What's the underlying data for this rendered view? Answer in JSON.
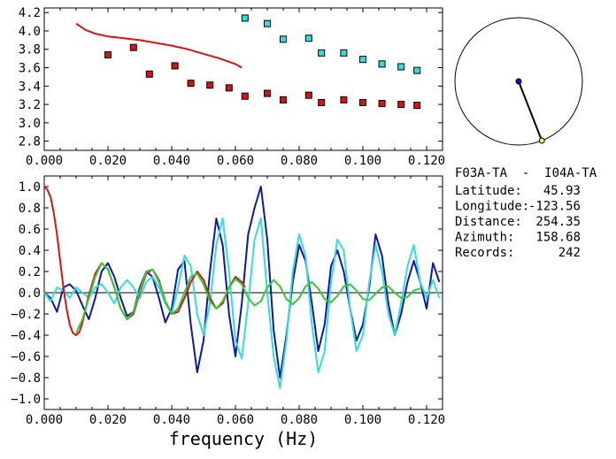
{
  "info": {
    "station_pair": "F03A-TA  -  I04A-TA",
    "rows": [
      {
        "label": "Latitude:",
        "value": "45.93"
      },
      {
        "label": "Longitude:",
        "value": "-123.56"
      },
      {
        "label": "Distance:",
        "value": "254.35"
      },
      {
        "label": "Azimuth:",
        "value": "158.68"
      },
      {
        "label": "Records:",
        "value": "242"
      }
    ]
  },
  "colors": {
    "red": "#dd1111",
    "cyan": "#33dddd",
    "blue": "#0a1aa8",
    "green": "#33cc33",
    "marker_yellow": "#eeee44",
    "axis": "#000000"
  },
  "chart_data": [
    {
      "type": "scatter",
      "title": "",
      "xlabel": "",
      "ylabel": "",
      "xlim": [
        0.0,
        0.125
      ],
      "ylim": [
        2.7,
        4.25
      ],
      "xticks": [
        "0.000",
        "0.020",
        "0.040",
        "0.060",
        "0.080",
        "0.100",
        "0.120"
      ],
      "yticks": [
        "2.8",
        "3.0",
        "3.2",
        "3.4",
        "3.6",
        "3.8",
        "4.0",
        "4.2"
      ],
      "series": [
        {
          "kind": "points",
          "color": "red",
          "x": [
            0.02,
            0.028,
            0.033,
            0.041,
            0.046,
            0.052,
            0.058,
            0.063,
            0.07,
            0.075,
            0.083,
            0.087,
            0.094,
            0.1,
            0.106,
            0.112,
            0.117
          ],
          "y": [
            3.74,
            3.82,
            3.53,
            3.62,
            3.43,
            3.41,
            3.38,
            3.29,
            3.32,
            3.25,
            3.3,
            3.22,
            3.25,
            3.22,
            3.21,
            3.2,
            3.19
          ]
        },
        {
          "kind": "points",
          "color": "cyan",
          "x": [
            0.063,
            0.07,
            0.075,
            0.083,
            0.087,
            0.094,
            0.1,
            0.106,
            0.112,
            0.117
          ],
          "y": [
            4.14,
            4.08,
            3.91,
            3.92,
            3.76,
            3.76,
            3.69,
            3.64,
            3.61,
            3.57
          ]
        },
        {
          "kind": "line",
          "color": "red",
          "x": [
            0.01,
            0.013,
            0.016,
            0.02,
            0.025,
            0.03,
            0.035,
            0.04,
            0.045,
            0.05,
            0.055,
            0.06,
            0.062
          ],
          "y": [
            4.08,
            4.01,
            3.97,
            3.94,
            3.92,
            3.9,
            3.87,
            3.84,
            3.8,
            3.75,
            3.7,
            3.64,
            3.6
          ]
        }
      ]
    },
    {
      "type": "line",
      "title": "",
      "xlabel": "frequency (Hz)",
      "ylabel": "",
      "xlim": [
        0.0,
        0.125
      ],
      "ylim": [
        -1.1,
        1.1
      ],
      "xticks": [
        "0.000",
        "0.020",
        "0.040",
        "0.060",
        "0.080",
        "0.100",
        "0.120"
      ],
      "yticks": [
        "1.0",
        "0.8",
        "0.6",
        "0.4",
        "0.2",
        "0.0",
        "-0.2",
        "-0.4",
        "-0.6",
        "-0.8",
        "-1.0"
      ],
      "series": [
        {
          "color": "blue",
          "x": [
            0.0,
            0.002,
            0.004,
            0.006,
            0.008,
            0.01,
            0.012,
            0.014,
            0.016,
            0.018,
            0.02,
            0.022,
            0.024,
            0.026,
            0.028,
            0.03,
            0.032,
            0.034,
            0.036,
            0.038,
            0.04,
            0.042,
            0.044,
            0.046,
            0.048,
            0.05,
            0.052,
            0.054,
            0.056,
            0.058,
            0.06,
            0.062,
            0.064,
            0.066,
            0.068,
            0.07,
            0.072,
            0.074,
            0.076,
            0.078,
            0.08,
            0.082,
            0.084,
            0.086,
            0.088,
            0.09,
            0.092,
            0.094,
            0.096,
            0.098,
            0.1,
            0.102,
            0.104,
            0.106,
            0.108,
            0.11,
            0.112,
            0.114,
            0.116,
            0.118,
            0.12,
            0.122,
            0.124
          ],
          "y": [
            0.0,
            -0.05,
            -0.18,
            0.05,
            0.08,
            0.02,
            -0.12,
            -0.25,
            -0.05,
            0.2,
            0.28,
            0.15,
            -0.05,
            -0.22,
            -0.18,
            0.05,
            0.2,
            0.15,
            -0.05,
            -0.28,
            -0.15,
            0.22,
            0.3,
            -0.3,
            -0.75,
            -0.45,
            0.2,
            0.7,
            0.45,
            -0.2,
            -0.6,
            -0.1,
            0.55,
            0.8,
            1.0,
            0.5,
            -0.35,
            -0.8,
            -0.4,
            0.1,
            0.45,
            0.3,
            -0.1,
            -0.55,
            -0.3,
            0.25,
            0.4,
            0.2,
            -0.15,
            -0.45,
            -0.3,
            0.05,
            0.55,
            0.35,
            -0.1,
            -0.4,
            -0.2,
            0.1,
            0.3,
            0.1,
            -0.15,
            0.28,
            0.1
          ]
        },
        {
          "color": "cyan",
          "x": [
            0.0,
            0.002,
            0.004,
            0.006,
            0.008,
            0.01,
            0.012,
            0.014,
            0.016,
            0.018,
            0.02,
            0.022,
            0.024,
            0.026,
            0.028,
            0.03,
            0.032,
            0.034,
            0.036,
            0.038,
            0.04,
            0.042,
            0.044,
            0.046,
            0.048,
            0.05,
            0.052,
            0.054,
            0.056,
            0.058,
            0.06,
            0.062,
            0.064,
            0.066,
            0.068,
            0.07,
            0.072,
            0.074,
            0.076,
            0.078,
            0.08,
            0.082,
            0.084,
            0.086,
            0.088,
            0.09,
            0.092,
            0.094,
            0.096,
            0.098,
            0.1,
            0.102,
            0.104,
            0.106,
            0.108,
            0.11,
            0.112,
            0.114,
            0.116,
            0.118,
            0.12,
            0.122,
            0.124
          ],
          "y": [
            0.0,
            -0.08,
            0.05,
            0.02,
            -0.05,
            0.05,
            0.0,
            -0.05,
            0.05,
            0.08,
            0.0,
            -0.1,
            0.05,
            0.12,
            0.05,
            -0.05,
            0.1,
            0.15,
            0.05,
            -0.1,
            -0.2,
            0.05,
            0.35,
            0.25,
            -0.2,
            -0.4,
            -0.1,
            0.45,
            0.7,
            0.2,
            -0.45,
            -0.62,
            -0.1,
            0.5,
            0.7,
            0.0,
            -0.6,
            -0.9,
            -0.45,
            0.2,
            0.55,
            0.35,
            -0.3,
            -0.75,
            -0.55,
            0.1,
            0.5,
            0.4,
            -0.15,
            -0.55,
            -0.4,
            0.1,
            0.45,
            0.2,
            -0.2,
            -0.4,
            -0.1,
            0.25,
            0.45,
            0.1,
            -0.05,
            0.12,
            -0.05
          ]
        },
        {
          "color": "red",
          "x": [
            0.0,
            0.001,
            0.002,
            0.003,
            0.004,
            0.005,
            0.006,
            0.007,
            0.008,
            0.009,
            0.01,
            0.011,
            0.012,
            0.013,
            0.014,
            0.016,
            0.018,
            0.02,
            0.022,
            0.024,
            0.026,
            0.028,
            0.03,
            0.032,
            0.034,
            0.036,
            0.038,
            0.04,
            0.042,
            0.044,
            0.046,
            0.048,
            0.05,
            0.052,
            0.054,
            0.056,
            0.058,
            0.06,
            0.062,
            0.063
          ],
          "y": [
            1.0,
            0.97,
            0.9,
            0.75,
            0.55,
            0.3,
            0.05,
            -0.15,
            -0.3,
            -0.38,
            -0.4,
            -0.37,
            -0.28,
            -0.15,
            -0.02,
            0.18,
            0.28,
            0.22,
            0.05,
            -0.15,
            -0.25,
            -0.2,
            0.0,
            0.18,
            0.22,
            0.12,
            -0.08,
            -0.2,
            -0.18,
            -0.05,
            0.1,
            0.2,
            0.12,
            -0.05,
            -0.15,
            -0.1,
            0.05,
            0.15,
            0.1,
            0.05
          ]
        },
        {
          "color": "green",
          "x": [
            0.01,
            0.012,
            0.014,
            0.016,
            0.018,
            0.02,
            0.022,
            0.024,
            0.026,
            0.028,
            0.03,
            0.032,
            0.034,
            0.036,
            0.038,
            0.04,
            0.042,
            0.044,
            0.046,
            0.048,
            0.05,
            0.052,
            0.054,
            0.056,
            0.058,
            0.06,
            0.062,
            0.064,
            0.066,
            0.068,
            0.07,
            0.072,
            0.074,
            0.076,
            0.078,
            0.08,
            0.082,
            0.084,
            0.086,
            0.088,
            0.09,
            0.092,
            0.094,
            0.096,
            0.098,
            0.1,
            0.102,
            0.104,
            0.106,
            0.108,
            0.11,
            0.112,
            0.114,
            0.116,
            0.118
          ],
          "y": [
            -0.38,
            -0.25,
            -0.05,
            0.15,
            0.28,
            0.22,
            0.05,
            -0.15,
            -0.25,
            -0.18,
            0.02,
            0.2,
            0.22,
            0.1,
            -0.08,
            -0.2,
            -0.15,
            0.0,
            0.15,
            0.18,
            0.08,
            -0.08,
            -0.15,
            -0.08,
            0.05,
            0.13,
            0.08,
            -0.05,
            -0.12,
            -0.08,
            0.05,
            0.12,
            0.06,
            -0.06,
            -0.11,
            -0.05,
            0.06,
            0.1,
            0.04,
            -0.06,
            -0.09,
            -0.03,
            0.06,
            0.08,
            0.02,
            -0.06,
            -0.07,
            -0.01,
            0.05,
            0.06,
            0.0,
            -0.05,
            -0.04,
            0.02,
            0.04
          ]
        }
      ]
    }
  ],
  "map_inset": {
    "station_a_color": "blue",
    "station_b_color": "marker_yellow",
    "azimuth_deg": 158.68
  }
}
